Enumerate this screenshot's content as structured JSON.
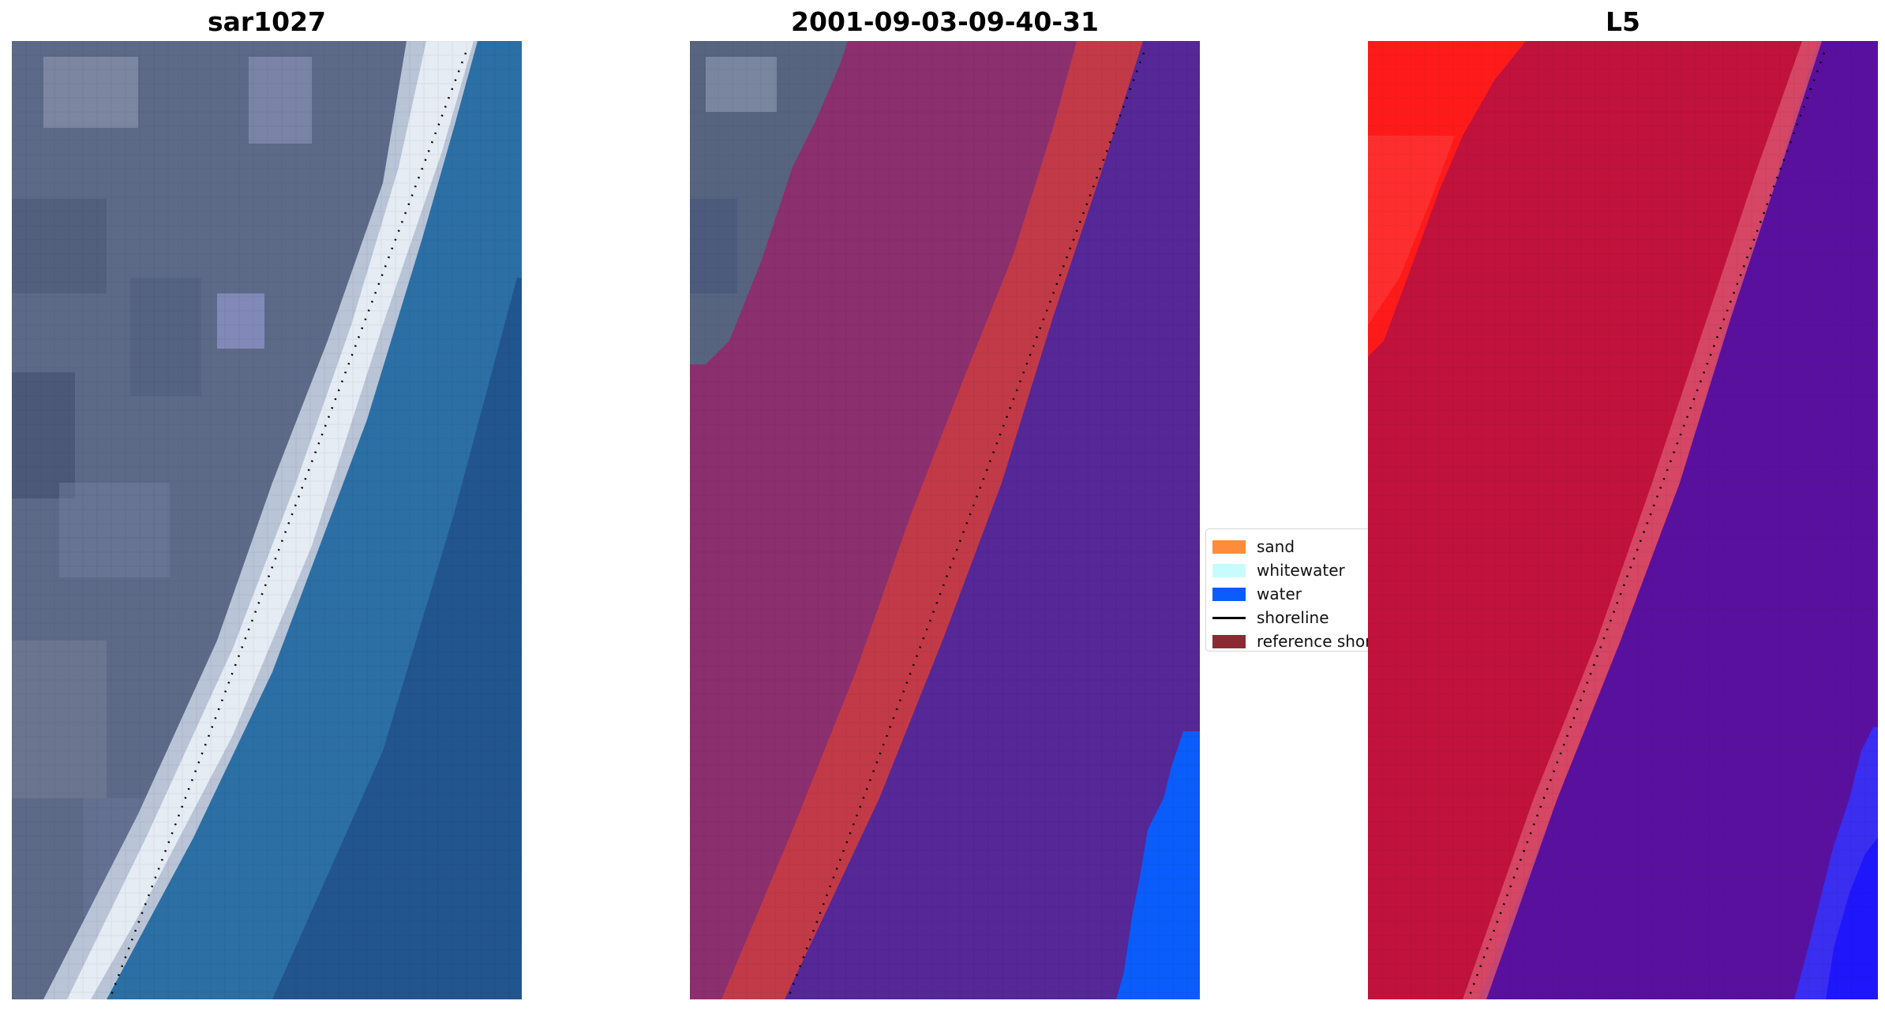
{
  "panels": [
    {
      "title": "sar1027"
    },
    {
      "title": "2001-09-03-09-40-31"
    },
    {
      "title": "L5"
    }
  ],
  "legend": {
    "items": [
      {
        "label": "sand",
        "color": "#ff8c3a",
        "kind": "patch"
      },
      {
        "label": "whitewater",
        "color": "#c8fcfc",
        "kind": "patch"
      },
      {
        "label": "water",
        "color": "#0a5cfb",
        "kind": "patch"
      },
      {
        "label": "shoreline",
        "color": "#000000",
        "kind": "line"
      },
      {
        "label": "reference shoreline",
        "color": "#8c2a33",
        "kind": "patch"
      }
    ]
  },
  "colors": {
    "land_rgb": "#5e6c8a",
    "beach_rgb": "#dde6ee",
    "sea_rgb": "#2a6aa2",
    "land_class": "#8a2e6e",
    "reference_band": "#c03848",
    "water_class": "#552797",
    "water_detected": "#0a5cfb",
    "land_index": "#c0123c",
    "water_index": "#5a109e"
  }
}
